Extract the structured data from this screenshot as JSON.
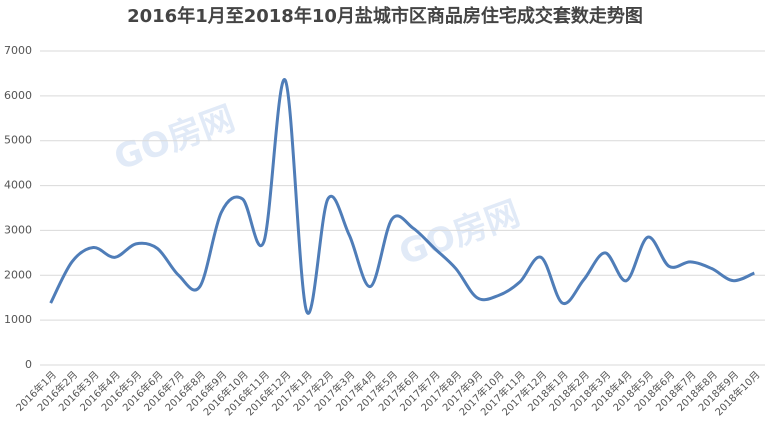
{
  "chart_data": {
    "type": "line",
    "title": "2016年1月至2018年10月盐城市区商品房住宅成交套数走势图",
    "watermark": "GO房网",
    "categories": [
      "2016年1月",
      "2016年2月",
      "2016年3月",
      "2016年4月",
      "2016年5月",
      "2016年6月",
      "2016年7月",
      "2016年8月",
      "2016年9月",
      "2016年10月",
      "2016年11月",
      "2016年12月",
      "2017年1月",
      "2017年2月",
      "2017年3月",
      "2017年4月",
      "2017年5月",
      "2017年6月",
      "2017年7月",
      "2017年8月",
      "2017年9月",
      "2017年10月",
      "2017年11月",
      "2017年12月",
      "2018年1月",
      "2018年2月",
      "2018年3月",
      "2018年4月",
      "2018年5月",
      "2018年6月",
      "2018年7月",
      "2018年8月",
      "2018年9月",
      "2018年10月"
    ],
    "values": [
      1380,
      2300,
      2620,
      2400,
      2700,
      2600,
      2000,
      1750,
      3400,
      3700,
      2750,
      6350,
      1200,
      3700,
      2900,
      1750,
      3250,
      3050,
      2600,
      2150,
      1500,
      1550,
      1850,
      2400,
      1380,
      1900,
      2500,
      1880,
      2850,
      2200,
      2300,
      2150,
      1880,
      2050
    ],
    "color": "#4f7db8",
    "ylim": [
      0,
      7000
    ],
    "yticks": [
      0,
      1000,
      2000,
      3000,
      4000,
      5000,
      6000,
      7000
    ],
    "grid": true
  }
}
